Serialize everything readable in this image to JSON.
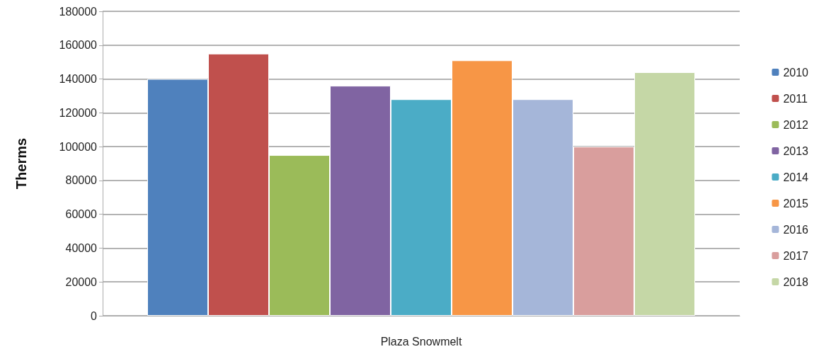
{
  "chart_data": {
    "type": "bar",
    "xlabel": null,
    "ylabel": "Therms",
    "categories": [
      "Plaza Snowmelt"
    ],
    "series": [
      {
        "name": "2010",
        "color": "#4f81bd",
        "values": [
          140000
        ]
      },
      {
        "name": "2011",
        "color": "#c0504d",
        "values": [
          155000
        ]
      },
      {
        "name": "2012",
        "color": "#9bbb59",
        "values": [
          95000
        ]
      },
      {
        "name": "2013",
        "color": "#8064a2",
        "values": [
          136000
        ]
      },
      {
        "name": "2014",
        "color": "#4bacc6",
        "values": [
          128000
        ]
      },
      {
        "name": "2015",
        "color": "#f79646",
        "values": [
          151000
        ]
      },
      {
        "name": "2016",
        "color": "#a5b6d9",
        "values": [
          128000
        ]
      },
      {
        "name": "2017",
        "color": "#d99e9d",
        "values": [
          100000
        ]
      },
      {
        "name": "2018",
        "color": "#c5d7a6",
        "values": [
          144000
        ]
      }
    ],
    "ylim": [
      0,
      180000
    ],
    "yticks": [
      0,
      20000,
      40000,
      60000,
      80000,
      100000,
      120000,
      140000,
      160000,
      180000
    ],
    "grid": "y",
    "legend": "right"
  }
}
